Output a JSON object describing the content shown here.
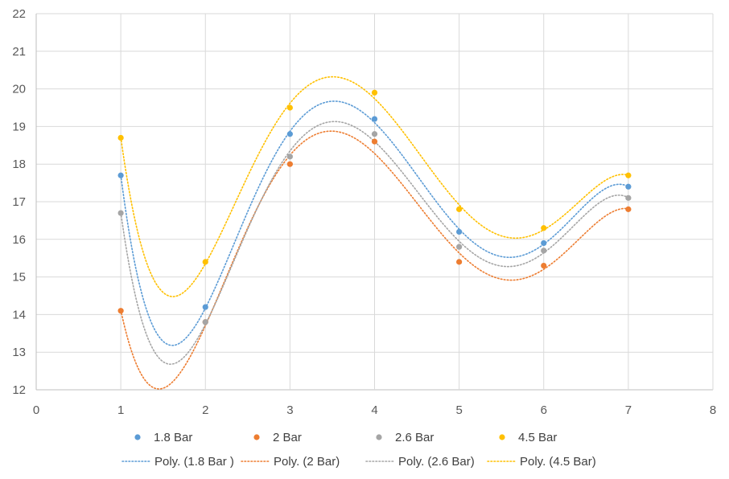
{
  "chart_data": {
    "type": "scatter",
    "xlim": [
      0,
      8
    ],
    "ylim": [
      12,
      22
    ],
    "x_ticks": [
      0,
      1,
      2,
      3,
      4,
      5,
      6,
      7,
      8
    ],
    "y_ticks": [
      12,
      13,
      14,
      15,
      16,
      17,
      18,
      19,
      20,
      21,
      22
    ],
    "grid": true,
    "legend_position": "bottom",
    "x": [
      1,
      2,
      3,
      4,
      5,
      6,
      7
    ],
    "series": [
      {
        "name": "1.8 Bar",
        "color": "#5b9bd5",
        "values": [
          17.7,
          14.2,
          18.8,
          19.2,
          16.2,
          15.9,
          17.4
        ]
      },
      {
        "name": "2 Bar",
        "color": "#ed7d31",
        "values": [
          14.1,
          13.8,
          18.0,
          18.6,
          15.4,
          15.3,
          16.8
        ]
      },
      {
        "name": "2.6 Bar",
        "color": "#a5a5a5",
        "values": [
          16.7,
          13.8,
          18.2,
          18.8,
          15.8,
          15.7,
          17.1
        ]
      },
      {
        "name": "4.5 Bar",
        "color": "#ffc000",
        "values": [
          18.7,
          15.4,
          19.5,
          19.9,
          16.8,
          16.3,
          17.7
        ]
      }
    ],
    "trendlines": [
      {
        "name": "Poly. (1.8 Bar )",
        "color": "#5b9bd5",
        "style": "dotted",
        "type": "polynomial",
        "series": 0
      },
      {
        "name": "Poly. (2 Bar)",
        "color": "#ed7d31",
        "style": "dotted",
        "type": "polynomial",
        "series": 1
      },
      {
        "name": "Poly. (2.6 Bar)",
        "color": "#a5a5a5",
        "style": "dotted",
        "type": "polynomial",
        "series": 2
      },
      {
        "name": "Poly. (4.5 Bar)",
        "color": "#ffc000",
        "style": "dotted",
        "type": "polynomial",
        "series": 3
      }
    ]
  }
}
